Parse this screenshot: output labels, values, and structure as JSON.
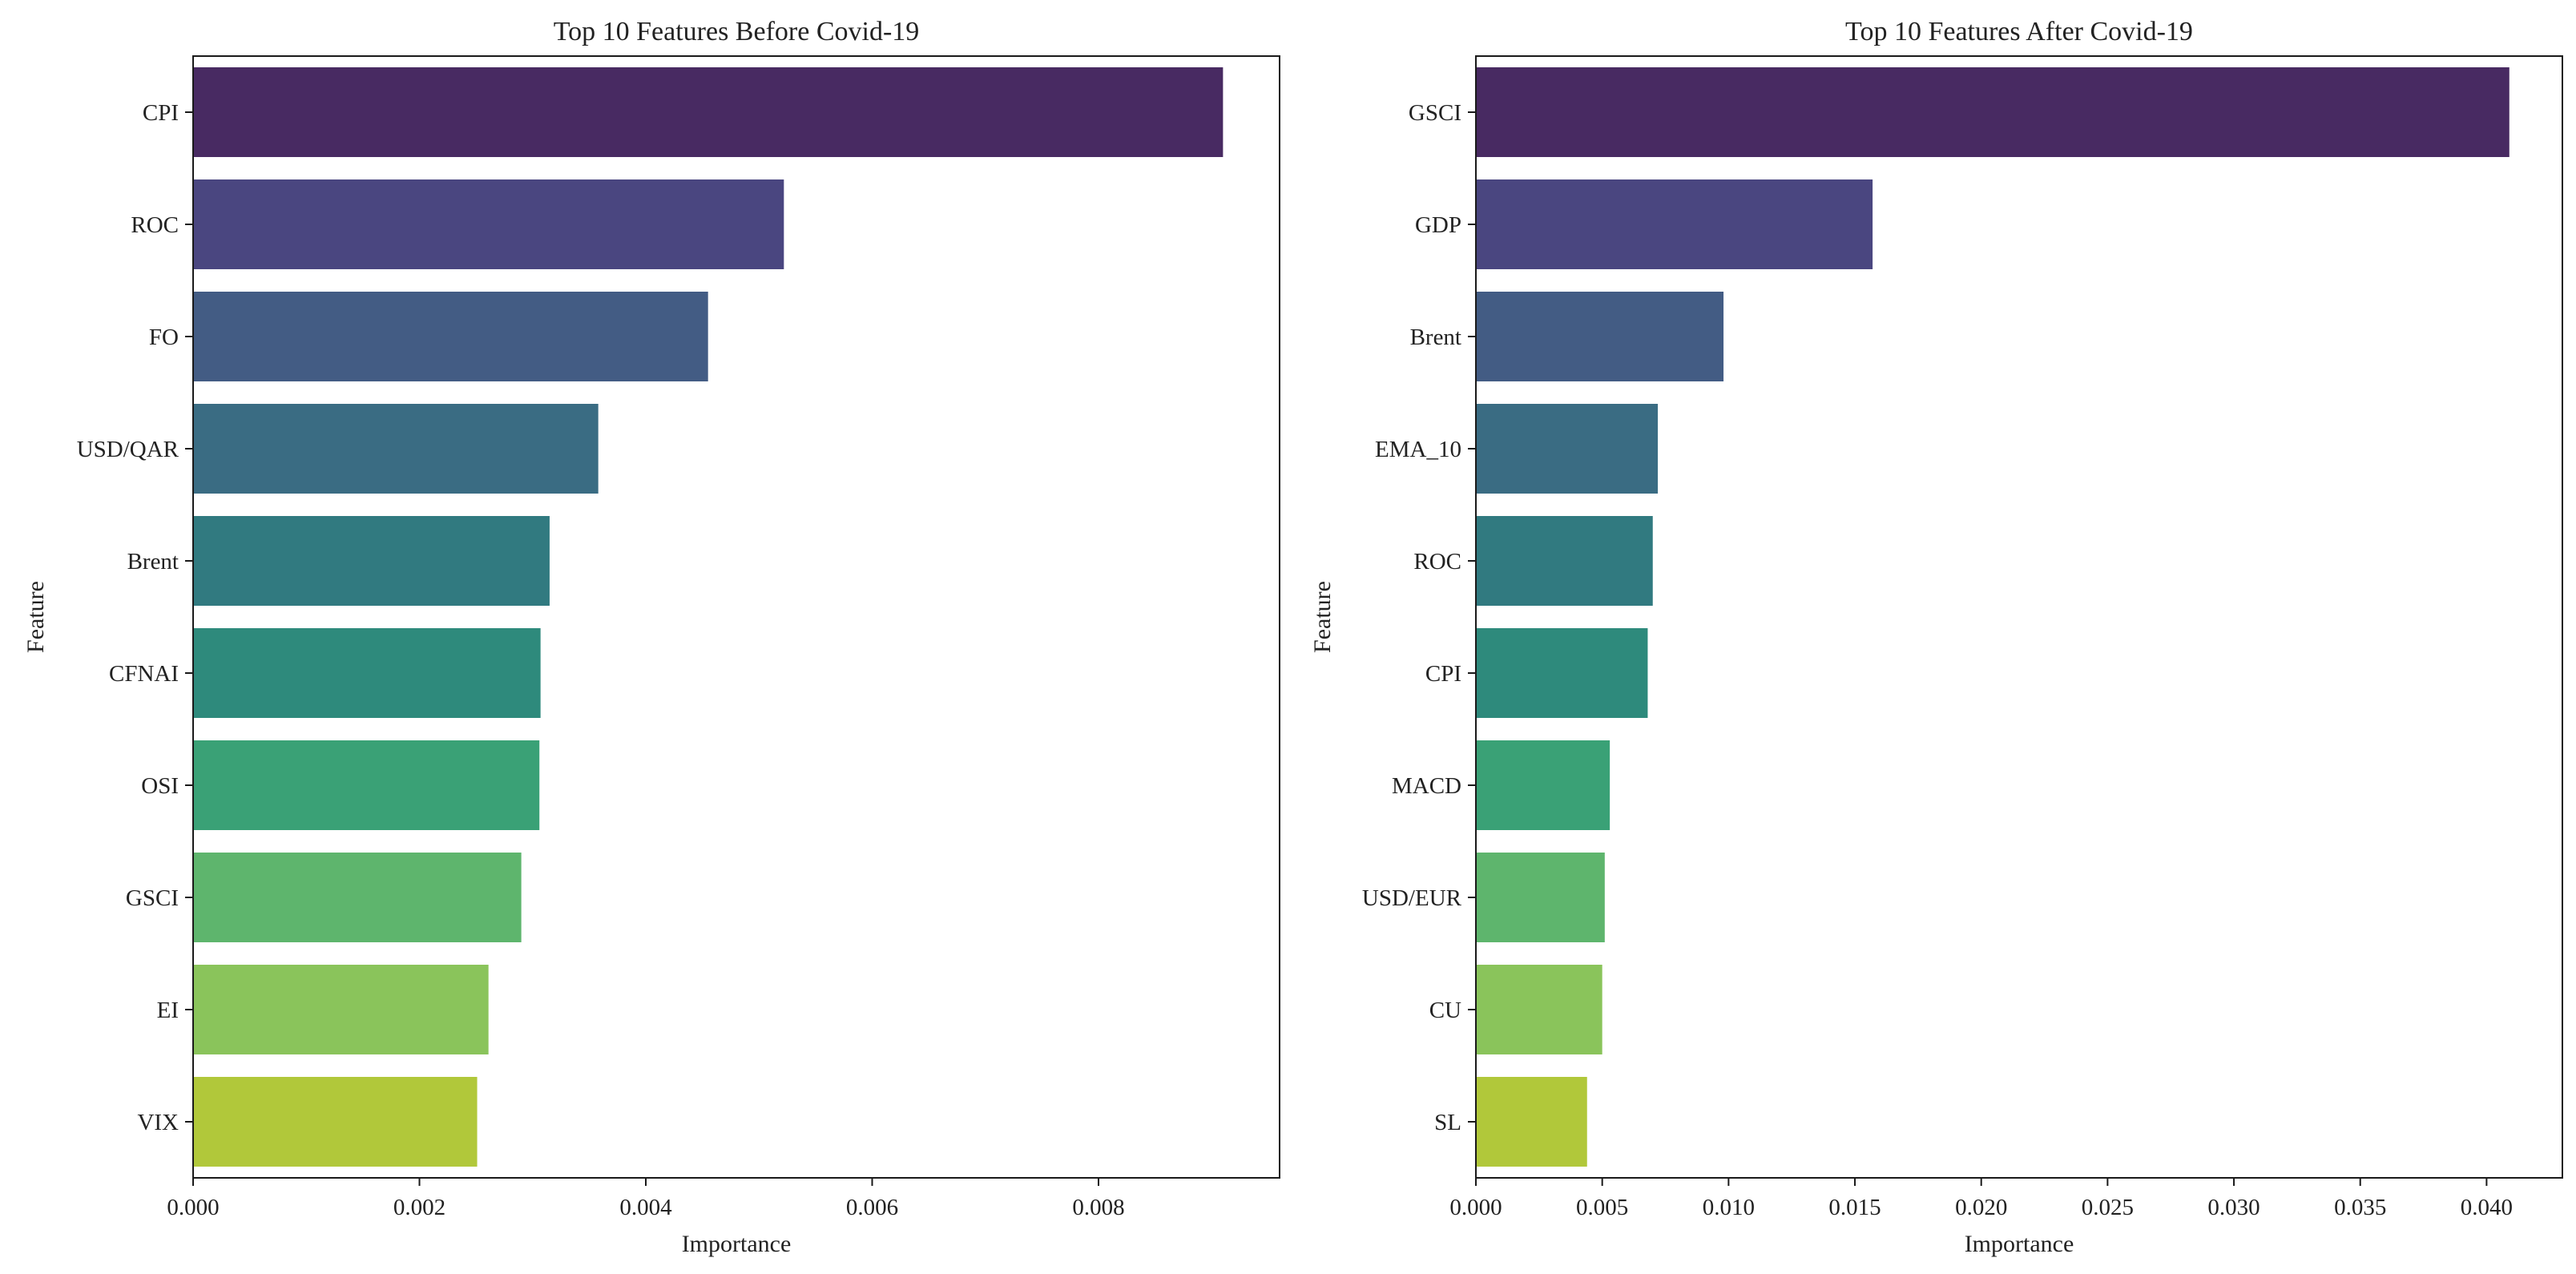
{
  "chart_data": [
    {
      "type": "bar",
      "orientation": "horizontal",
      "title": "Top 10 Features Before Covid-19",
      "xlabel": "Importance",
      "ylabel": "Feature",
      "categories": [
        "CPI",
        "ROC",
        "FO",
        "USD/QAR",
        "Brent",
        "CFNAI",
        "OSI",
        "GSCI",
        "EI",
        "VIX"
      ],
      "values": [
        0.0091,
        0.00522,
        0.00455,
        0.00358,
        0.00315,
        0.00307,
        0.00306,
        0.0029,
        0.00261,
        0.00251
      ],
      "colors": [
        "#482a62",
        "#4a4680",
        "#435c84",
        "#3a6c83",
        "#317a80",
        "#2e8a7c",
        "#3aa176",
        "#5eb56d",
        "#8ac45b",
        "#b1c83a"
      ],
      "xlim": [
        0,
        0.0096
      ],
      "xticks": [
        0,
        0.002,
        0.004,
        0.006,
        0.008
      ],
      "xtick_labels": [
        "0.000",
        "0.002",
        "0.004",
        "0.006",
        "0.008"
      ]
    },
    {
      "type": "bar",
      "orientation": "horizontal",
      "title": "Top 10 Features After Covid-19",
      "xlabel": "Importance",
      "ylabel": "Feature",
      "categories": [
        "GSCI",
        "GDP",
        "Brent",
        "EMA_10",
        "ROC",
        "CPI",
        "MACD",
        "USD/EUR",
        "CU",
        "SL"
      ],
      "values": [
        0.0409,
        0.0157,
        0.0098,
        0.0072,
        0.007,
        0.0068,
        0.0053,
        0.0051,
        0.005,
        0.0044
      ],
      "colors": [
        "#482a62",
        "#4a4680",
        "#435c84",
        "#3a6c83",
        "#317a80",
        "#2e8a7c",
        "#3aa176",
        "#5eb56d",
        "#8ac45b",
        "#b1c83a"
      ],
      "xlim": [
        0,
        0.043
      ],
      "xticks": [
        0,
        0.005,
        0.01,
        0.015,
        0.02,
        0.025,
        0.03,
        0.035,
        0.04
      ],
      "xtick_labels": [
        "0.000",
        "0.005",
        "0.010",
        "0.015",
        "0.020",
        "0.025",
        "0.030",
        "0.035",
        "0.040"
      ]
    }
  ]
}
